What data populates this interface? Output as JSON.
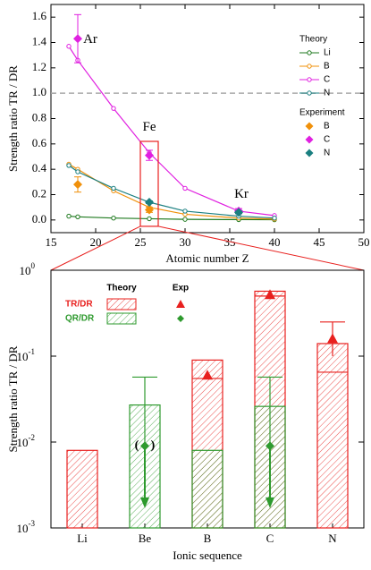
{
  "chart_data": [
    {
      "type": "line",
      "xlabel": "Atomic number Z",
      "ylabel": "Strength ratio TR / DR",
      "x": [
        17,
        18,
        22,
        26,
        30,
        36,
        40
      ],
      "legend_title": "Theory",
      "legend": "right",
      "series": [
        {
          "name": "Li",
          "color": "#1f7a1f",
          "values": [
            0.03,
            0.025,
            0.015,
            0.01,
            0.005,
            0.003,
            0.002
          ]
        },
        {
          "name": "B",
          "color": "#f0900a",
          "values": [
            0.44,
            0.4,
            0.23,
            0.1,
            0.045,
            0.015,
            0.007
          ]
        },
        {
          "name": "C",
          "color": "#e020e0",
          "values": [
            1.37,
            1.26,
            0.88,
            0.53,
            0.25,
            0.07,
            0.035
          ]
        },
        {
          "name": "N",
          "color": "#1a7f80",
          "values": [
            0.43,
            0.38,
            0.25,
            0.14,
            0.07,
            0.03,
            0.015
          ]
        }
      ],
      "experiment": {
        "legend_title": "Experiment",
        "series": [
          {
            "name": "B",
            "color": "#f0900a",
            "x": [
              18,
              26
            ],
            "values": [
              0.28,
              0.08
            ],
            "errors": [
              0.06,
              0.02
            ]
          },
          {
            "name": "C",
            "color": "#e020e0",
            "x": [
              18,
              26,
              36
            ],
            "values": [
              1.43,
              0.51,
              0.07
            ],
            "errors": [
              0.19,
              0.04,
              0.02
            ]
          },
          {
            "name": "N",
            "color": "#1a7f80",
            "x": [
              26,
              36
            ],
            "values": [
              0.14,
              0.06
            ],
            "errors": [
              0.01,
              0.01
            ]
          }
        ]
      },
      "annotations": [
        {
          "text": "Ar",
          "x": 19.4,
          "y": 1.42
        },
        {
          "text": "Fe",
          "x": 26,
          "y": 0.73
        },
        {
          "text": "Kr",
          "x": 36.3,
          "y": 0.2
        }
      ],
      "reference_line": 1.0,
      "highlight": {
        "xlim": [
          25,
          27
        ],
        "ylim": [
          -0.05,
          0.62
        ]
      },
      "xlim": [
        15,
        50
      ],
      "ylim": [
        -0.1,
        1.7
      ],
      "xticks": [
        15,
        20,
        25,
        30,
        35,
        40,
        45,
        50
      ],
      "yticks": [
        {
          "value": 0,
          "label": "0.0"
        },
        0.2,
        0.4,
        0.6,
        0.8,
        {
          "value": 1,
          "label": "1.0"
        },
        1.2,
        1.4,
        1.6
      ]
    },
    {
      "type": "bar",
      "log_scale": true,
      "xlabel": "Ionic sequence",
      "ylabel": "Strength ratio TR / DR",
      "categories": [
        "Li",
        "Be",
        "B",
        "C",
        "N"
      ],
      "legend_headers": [
        "Theory",
        "Exp"
      ],
      "series": [
        {
          "name": "TR/DR",
          "color": "#e8201e",
          "values": [
            0.008,
            null,
            0.09,
            0.57,
            0.14
          ],
          "inner_values": [
            null,
            null,
            0.055,
            0.5,
            0.065
          ]
        },
        {
          "name": "QR/DR",
          "color": "#2e9a2e",
          "values": [
            null,
            0.027,
            0.008,
            0.026,
            null
          ]
        }
      ],
      "experiment": [
        {
          "name": "TR/DR",
          "color": "#e8201e",
          "marker": "triangle",
          "values": [
            null,
            null,
            0.06,
            0.52,
            0.16
          ],
          "error_low": [
            null,
            null,
            null,
            null,
            0.1
          ],
          "error_high": [
            null,
            null,
            null,
            null,
            0.25
          ]
        },
        {
          "name": "QR/DR",
          "color": "#2e9a2e",
          "marker": "diamond",
          "values": [
            null,
            0.009,
            null,
            0.009,
            null
          ],
          "error_high": [
            null,
            0.057,
            null,
            0.057,
            null
          ],
          "arrow_to": [
            null,
            0.0017,
            null,
            0.0017,
            null
          ],
          "brackets": [
            "(",
            ")"
          ],
          "bracketed": [
            false,
            true,
            false,
            false,
            false
          ]
        }
      ],
      "ylim": [
        0.001,
        1
      ],
      "yticks": [
        {
          "value": 0.001,
          "label": "10",
          "exponent": "-3"
        },
        {
          "value": 0.01,
          "label": "10",
          "exponent": "-2"
        },
        {
          "value": 0.1,
          "label": "10",
          "exponent": "-1"
        },
        {
          "value": 1,
          "label": "10",
          "exponent": "0"
        }
      ]
    }
  ]
}
